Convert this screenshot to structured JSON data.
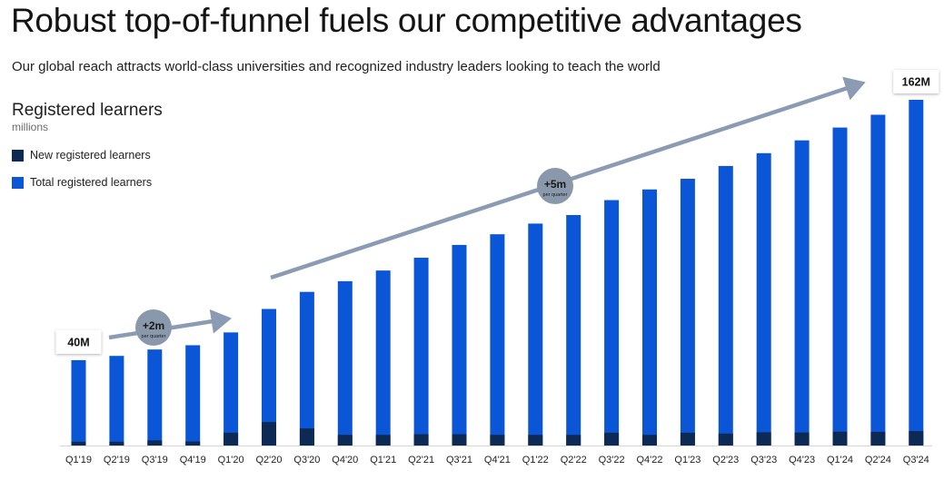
{
  "title": "Robust top-of-funnel fuels our competitive advantages",
  "subtitle": "Our global reach attracts world-class universities and recognized industry leaders looking to teach the world",
  "colors": {
    "total": "#0a56d6",
    "new": "#0d2a55",
    "arrow": "#8a9bb3",
    "bubble": "#8a98ab"
  },
  "chart_data": {
    "type": "bar",
    "title": "Registered learners",
    "unit": "millions",
    "legend": [
      {
        "name": "New registered learners",
        "color": "#0d2a55"
      },
      {
        "name": "Total registered learners",
        "color": "#0a56d6"
      }
    ],
    "categories": [
      "Q1'19",
      "Q2'19",
      "Q3'19",
      "Q4'19",
      "Q1'20",
      "Q2'20",
      "Q3'20",
      "Q4'20",
      "Q1'21",
      "Q2'21",
      "Q3'21",
      "Q4'21",
      "Q1'22",
      "Q2'22",
      "Q3'22",
      "Q4'22",
      "Q1'23",
      "Q2'23",
      "Q3'23",
      "Q4'23",
      "Q1'24",
      "Q2'24",
      "Q3'24"
    ],
    "series": [
      {
        "name": "Total registered learners",
        "values": [
          40,
          42,
          45,
          47,
          53,
          64,
          72,
          77,
          82,
          88,
          94,
          99,
          104,
          108,
          115,
          120,
          125,
          131,
          137,
          143,
          149,
          155,
          162
        ]
      },
      {
        "name": "New registered learners",
        "values": [
          1.8,
          1.8,
          2.4,
          1.9,
          6,
          11,
          8,
          5,
          5,
          5.3,
          5.3,
          5,
          5,
          5,
          6,
          5,
          6,
          5.6,
          6.2,
          6.1,
          6.5,
          6.4,
          6.8
        ]
      }
    ],
    "ylim": [
      0,
      170
    ],
    "annotations": {
      "start_label": "40M",
      "end_label": "162M",
      "growth_1": {
        "value": "+2m",
        "note": "per quarter",
        "from": "Q1'19",
        "to": "Q1'20"
      },
      "growth_2": {
        "value": "+5m",
        "note": "per quarter",
        "from": "Q2'20",
        "to": "Q3'24"
      }
    }
  }
}
